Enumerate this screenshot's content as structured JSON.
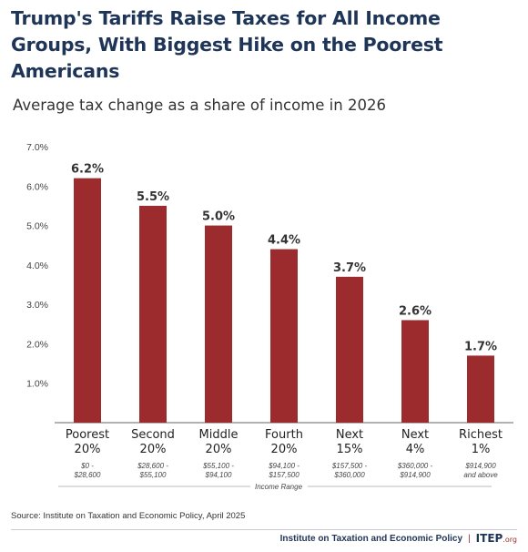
{
  "title": "Trump's Tariffs Raise Taxes for All Income Groups, With Biggest Hike on the Poorest Americans",
  "subtitle": "Average tax change as a share of income in 2026",
  "source": "Source: Institute on Taxation and Economic Policy, April 2025",
  "footer": {
    "org": "Institute on Taxation and Economic Policy",
    "logo": "ITEP",
    "logo_suffix": ".org"
  },
  "chart_data": {
    "type": "bar",
    "categories": [
      "Poorest 20%",
      "Second 20%",
      "Middle 20%",
      "Fourth 20%",
      "Next 15%",
      "Next 4%",
      "Richest 1%"
    ],
    "category_lines": [
      [
        "Poorest",
        "20%"
      ],
      [
        "Second",
        "20%"
      ],
      [
        "Middle",
        "20%"
      ],
      [
        "Fourth",
        "20%"
      ],
      [
        "Next",
        "15%"
      ],
      [
        "Next",
        "4%"
      ],
      [
        "Richest",
        "1%"
      ]
    ],
    "income_ranges": [
      [
        "$0 -",
        "$28,600"
      ],
      [
        "$28,600 -",
        "$55,100"
      ],
      [
        "$55,100 -",
        "$94,100"
      ],
      [
        "$94,100 -",
        "$157,500"
      ],
      [
        "$157,500 -",
        "$360,000"
      ],
      [
        "$360,000 -",
        "$914,900"
      ],
      [
        "$914,900",
        "and above"
      ]
    ],
    "values": [
      6.2,
      5.5,
      5.0,
      4.4,
      3.7,
      2.6,
      1.7
    ],
    "data_labels": [
      "6.2%",
      "5.5%",
      "5.0%",
      "4.4%",
      "3.7%",
      "2.6%",
      "1.7%"
    ],
    "yticks": [
      "1.0%",
      "2.0%",
      "3.0%",
      "4.0%",
      "5.0%",
      "6.0%",
      "7.0%"
    ],
    "ytick_values": [
      1,
      2,
      3,
      4,
      5,
      6,
      7
    ],
    "ylim": [
      0,
      7
    ],
    "xlabel": "Income Range",
    "bar_color": "#9b2b2c",
    "grid": false
  }
}
